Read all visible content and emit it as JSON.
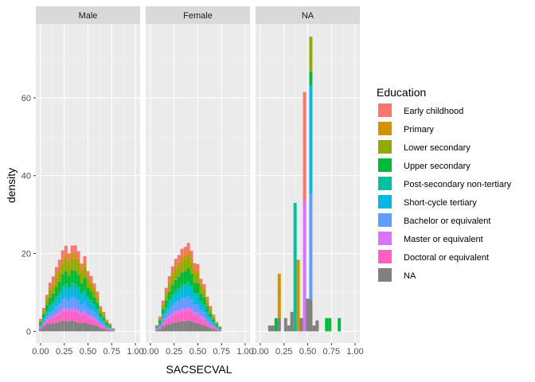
{
  "chart_data": {
    "type": "bar",
    "subtype": "faceted stacked density histogram",
    "xlabel": "SACSECVAL",
    "ylabel": "density",
    "xlim": [
      -0.05,
      1.05
    ],
    "ylim": [
      -3,
      79
    ],
    "x_ticks": [
      0.0,
      0.25,
      0.5,
      0.75,
      1.0
    ],
    "x_tick_labels": [
      "0.00",
      "0.25",
      "0.50",
      "0.75",
      "1.00"
    ],
    "y_ticks": [
      0,
      20,
      40,
      60
    ],
    "y_tick_labels": [
      "0",
      "20",
      "40",
      "60"
    ],
    "bin_width": 0.03333,
    "grid": true,
    "legend_position": "right",
    "legend": {
      "title": "Education",
      "entries": [
        {
          "label": "Early childhood",
          "color": "#F8766D"
        },
        {
          "label": "Primary",
          "color": "#D39200"
        },
        {
          "label": "Lower secondary",
          "color": "#93AA00"
        },
        {
          "label": "Upper secondary",
          "color": "#00BA38"
        },
        {
          "label": "Post-secondary non-tertiary",
          "color": "#00C19F"
        },
        {
          "label": "Short-cycle tertiary",
          "color": "#00B9E3"
        },
        {
          "label": "Bachelor or equivalent",
          "color": "#619CFF"
        },
        {
          "label": "Master or equivalent",
          "color": "#DB72FB"
        },
        {
          "label": "Doctoral or equivalent",
          "color": "#FF61C3"
        },
        {
          "label": "NA",
          "color": "#808080"
        }
      ]
    },
    "panels": [
      {
        "label": "Male",
        "bins": [
          {
            "x": 0.0,
            "values": [
              0.3,
              0.2,
              0.4,
              0.5,
              0.2,
              0.3,
              0.3,
              0.1,
              0.3,
              0.6
            ]
          },
          {
            "x": 0.033,
            "values": [
              0.6,
              0.3,
              0.7,
              0.9,
              0.3,
              0.6,
              0.6,
              0.2,
              0.6,
              1.2
            ]
          },
          {
            "x": 0.067,
            "values": [
              0.9,
              0.5,
              1.2,
              1.5,
              0.5,
              0.9,
              0.9,
              0.3,
              0.9,
              1.8
            ]
          },
          {
            "x": 0.1,
            "values": [
              1.4,
              0.7,
              1.7,
              2.0,
              0.6,
              1.2,
              1.3,
              0.4,
              1.3,
              1.9
            ]
          },
          {
            "x": 0.133,
            "values": [
              1.8,
              0.8,
              1.8,
              2.2,
              0.8,
              1.3,
              1.4,
              0.5,
              1.5,
              2.0
            ]
          },
          {
            "x": 0.167,
            "values": [
              1.6,
              1.0,
              2.4,
              2.6,
              0.9,
              1.6,
              1.8,
              0.6,
              1.8,
              2.2
            ]
          },
          {
            "x": 0.2,
            "values": [
              2.0,
              1.0,
              2.6,
              2.8,
              1.0,
              1.9,
              2.0,
              0.7,
              2.0,
              2.4
            ]
          },
          {
            "x": 0.233,
            "values": [
              2.2,
              1.0,
              3.0,
              3.0,
              1.1,
              2.2,
              2.3,
              0.8,
              2.4,
              2.8
            ]
          },
          {
            "x": 0.267,
            "values": [
              2.2,
              1.2,
              3.2,
              3.2,
              1.2,
              2.4,
              2.6,
              0.9,
              2.4,
              2.7
            ]
          },
          {
            "x": 0.3,
            "values": [
              1.8,
              1.0,
              2.9,
              3.0,
              1.1,
              2.2,
              2.4,
              0.8,
              2.3,
              2.5
            ]
          },
          {
            "x": 0.333,
            "values": [
              2.0,
              1.2,
              3.1,
              3.2,
              1.2,
              2.5,
              2.6,
              0.9,
              2.5,
              2.8
            ]
          },
          {
            "x": 0.367,
            "values": [
              2.2,
              1.2,
              3.2,
              3.3,
              1.2,
              2.5,
              2.6,
              0.9,
              2.5,
              2.5
            ]
          },
          {
            "x": 0.4,
            "values": [
              2.0,
              1.1,
              3.0,
              3.1,
              1.1,
              2.3,
              2.5,
              0.9,
              2.4,
              2.2
            ]
          },
          {
            "x": 0.433,
            "values": [
              1.6,
              0.9,
              2.5,
              2.6,
              0.9,
              2.0,
              2.1,
              0.7,
              2.0,
              2.1
            ]
          },
          {
            "x": 0.467,
            "values": [
              1.8,
              1.0,
              2.8,
              3.0,
              1.0,
              2.2,
              2.3,
              0.8,
              2.2,
              2.2
            ]
          },
          {
            "x": 0.5,
            "values": [
              1.4,
              0.8,
              2.2,
              2.3,
              0.8,
              1.8,
              1.9,
              0.6,
              1.8,
              1.9
            ]
          },
          {
            "x": 0.533,
            "values": [
              1.3,
              0.7,
              2.0,
              2.2,
              0.8,
              1.6,
              1.7,
              0.6,
              1.6,
              1.7
            ]
          },
          {
            "x": 0.567,
            "values": [
              1.2,
              0.6,
              1.7,
              1.8,
              0.7,
              1.4,
              1.5,
              0.5,
              1.4,
              1.5
            ]
          },
          {
            "x": 0.6,
            "values": [
              1.0,
              0.5,
              1.4,
              1.5,
              0.6,
              1.1,
              1.3,
              0.4,
              1.1,
              1.3
            ]
          },
          {
            "x": 0.633,
            "values": [
              0.6,
              0.3,
              0.9,
              1.0,
              0.4,
              0.7,
              0.8,
              0.3,
              0.7,
              0.8
            ]
          },
          {
            "x": 0.667,
            "values": [
              0.5,
              0.2,
              0.7,
              0.8,
              0.3,
              0.5,
              0.6,
              0.2,
              0.5,
              0.7
            ]
          },
          {
            "x": 0.7,
            "values": [
              0.3,
              0.1,
              0.4,
              0.5,
              0.2,
              0.3,
              0.4,
              0.1,
              0.3,
              0.4
            ]
          },
          {
            "x": 0.733,
            "values": [
              0.2,
              0.1,
              0.3,
              0.3,
              0.1,
              0.2,
              0.2,
              0.1,
              0.2,
              0.3
            ]
          },
          {
            "x": 0.767,
            "values": [
              0.1,
              0.0,
              0.1,
              0.1,
              0.0,
              0.1,
              0.1,
              0.0,
              0.1,
              0.2
            ]
          }
        ]
      },
      {
        "label": "Female",
        "bins": [
          {
            "x": 0.067,
            "values": [
              0.1,
              0.1,
              0.2,
              0.2,
              0.1,
              0.1,
              0.2,
              0.1,
              0.2,
              0.3
            ]
          },
          {
            "x": 0.1,
            "values": [
              0.4,
              0.2,
              0.5,
              0.6,
              0.2,
              0.4,
              0.4,
              0.1,
              0.4,
              0.6
            ]
          },
          {
            "x": 0.133,
            "values": [
              0.8,
              0.4,
              1.0,
              1.2,
              0.4,
              0.8,
              0.9,
              0.3,
              0.9,
              1.2
            ]
          },
          {
            "x": 0.167,
            "values": [
              1.1,
              0.6,
              1.5,
              1.7,
              0.6,
              1.1,
              1.3,
              0.4,
              1.3,
              1.6
            ]
          },
          {
            "x": 0.2,
            "values": [
              1.4,
              0.8,
              1.9,
              2.1,
              0.8,
              1.5,
              1.7,
              0.5,
              1.7,
              1.8
            ]
          },
          {
            "x": 0.233,
            "values": [
              1.6,
              0.9,
              2.3,
              2.5,
              0.9,
              1.8,
              2.0,
              0.6,
              2.0,
              2.1
            ]
          },
          {
            "x": 0.267,
            "values": [
              1.8,
              1.0,
              2.6,
              2.8,
              1.0,
              2.0,
              2.2,
              0.7,
              2.2,
              2.3
            ]
          },
          {
            "x": 0.3,
            "values": [
              1.9,
              1.0,
              2.7,
              2.9,
              1.1,
              2.1,
              2.4,
              0.8,
              2.3,
              2.4
            ]
          },
          {
            "x": 0.333,
            "values": [
              2.0,
              1.1,
              3.0,
              3.1,
              1.1,
              2.4,
              2.5,
              0.9,
              2.5,
              2.6
            ]
          },
          {
            "x": 0.367,
            "values": [
              2.1,
              1.1,
              3.1,
              3.2,
              1.2,
              2.4,
              2.6,
              0.9,
              2.5,
              2.6
            ]
          },
          {
            "x": 0.4,
            "values": [
              2.1,
              1.2,
              3.2,
              3.4,
              1.2,
              2.6,
              2.7,
              0.9,
              2.6,
              2.8
            ]
          },
          {
            "x": 0.433,
            "values": [
              1.9,
              1.1,
              2.9,
              3.1,
              1.1,
              2.3,
              2.5,
              0.8,
              2.4,
              2.6
            ]
          },
          {
            "x": 0.467,
            "values": [
              1.6,
              0.9,
              2.5,
              2.6,
              0.9,
              2.0,
              2.1,
              0.7,
              2.0,
              2.2
            ]
          },
          {
            "x": 0.5,
            "values": [
              1.6,
              0.9,
              2.4,
              2.6,
              0.9,
              2.0,
              2.1,
              0.7,
              2.0,
              2.1
            ]
          },
          {
            "x": 0.533,
            "values": [
              1.2,
              0.7,
              1.9,
              2.0,
              0.7,
              1.5,
              1.6,
              0.6,
              1.6,
              1.7
            ]
          },
          {
            "x": 0.567,
            "values": [
              1.1,
              0.6,
              1.7,
              1.8,
              0.6,
              1.4,
              1.5,
              0.5,
              1.4,
              1.5
            ]
          },
          {
            "x": 0.6,
            "values": [
              0.8,
              0.5,
              1.2,
              1.3,
              0.5,
              1.0,
              1.1,
              0.4,
              1.0,
              1.1
            ]
          },
          {
            "x": 0.633,
            "values": [
              0.6,
              0.3,
              0.9,
              1.0,
              0.4,
              0.7,
              0.8,
              0.3,
              0.7,
              0.8
            ]
          },
          {
            "x": 0.667,
            "values": [
              0.4,
              0.2,
              0.6,
              0.6,
              0.2,
              0.5,
              0.5,
              0.2,
              0.5,
              0.6
            ]
          },
          {
            "x": 0.7,
            "values": [
              0.2,
              0.1,
              0.3,
              0.4,
              0.1,
              0.3,
              0.3,
              0.1,
              0.3,
              0.3
            ]
          },
          {
            "x": 0.733,
            "values": [
              0.1,
              0.1,
              0.2,
              0.2,
              0.1,
              0.1,
              0.2,
              0.0,
              0.1,
              0.2
            ]
          }
        ]
      },
      {
        "label": "NA",
        "bins": [
          {
            "x": 0.1,
            "values": [
              0,
              0,
              0,
              0,
              0,
              0,
              0,
              0,
              0,
              1.5
            ]
          },
          {
            "x": 0.133,
            "values": [
              0,
              0,
              0,
              0,
              0,
              0,
              0,
              0,
              0,
              1.5
            ]
          },
          {
            "x": 0.167,
            "values": [
              0,
              0,
              0,
              3.4,
              0,
              0,
              0,
              0,
              0,
              0
            ]
          },
          {
            "x": 0.2,
            "values": [
              0,
              11.4,
              0,
              0,
              0,
              0,
              0,
              0,
              0,
              3.4
            ]
          },
          {
            "x": 0.267,
            "values": [
              0,
              0,
              0,
              0,
              0,
              0,
              0,
              0,
              0,
              3.4
            ]
          },
          {
            "x": 0.3,
            "values": [
              0,
              0,
              0,
              0,
              0,
              0,
              0,
              0,
              0,
              1.5
            ]
          },
          {
            "x": 0.333,
            "values": [
              0,
              0,
              0,
              0,
              0,
              0,
              0,
              0,
              0,
              5.0
            ]
          },
          {
            "x": 0.367,
            "values": [
              0,
              0,
              0,
              0,
              33.0,
              0,
              0,
              0,
              0,
              0
            ]
          },
          {
            "x": 0.4,
            "values": [
              0,
              18.4,
              0,
              0,
              0,
              0,
              0,
              0,
              0,
              0
            ]
          },
          {
            "x": 0.433,
            "values": [
              0,
              0,
              0,
              0,
              0,
              0,
              0,
              0,
              0,
              3.4
            ]
          },
          {
            "x": 0.467,
            "values": [
              28.0,
              0,
              0,
              0,
              0,
              0,
              0,
              33.5,
              0,
              0
            ]
          },
          {
            "x": 0.5,
            "values": [
              0,
              0,
              0,
              0,
              0,
              0,
              0,
              0,
              0,
              8.4
            ]
          },
          {
            "x": 0.533,
            "values": [
              0,
              0,
              9.0,
              3.5,
              0,
              28.0,
              27.0,
              0,
              0,
              8.2
            ]
          },
          {
            "x": 0.567,
            "values": [
              0,
              0,
              0,
              0,
              0,
              0,
              0,
              0,
              0,
              1.5
            ]
          },
          {
            "x": 0.6,
            "values": [
              0,
              0,
              0,
              0,
              0,
              0,
              0,
              0,
              0,
              2.8
            ]
          },
          {
            "x": 0.7,
            "values": [
              0,
              0,
              0,
              3.4,
              0,
              0,
              0,
              0,
              0,
              0
            ]
          },
          {
            "x": 0.733,
            "values": [
              0,
              0,
              0,
              3.4,
              0,
              0,
              0,
              0,
              0,
              0
            ]
          },
          {
            "x": 0.833,
            "values": [
              0,
              0,
              0,
              3.4,
              0,
              0,
              0,
              0,
              0,
              0
            ]
          }
        ]
      }
    ]
  }
}
